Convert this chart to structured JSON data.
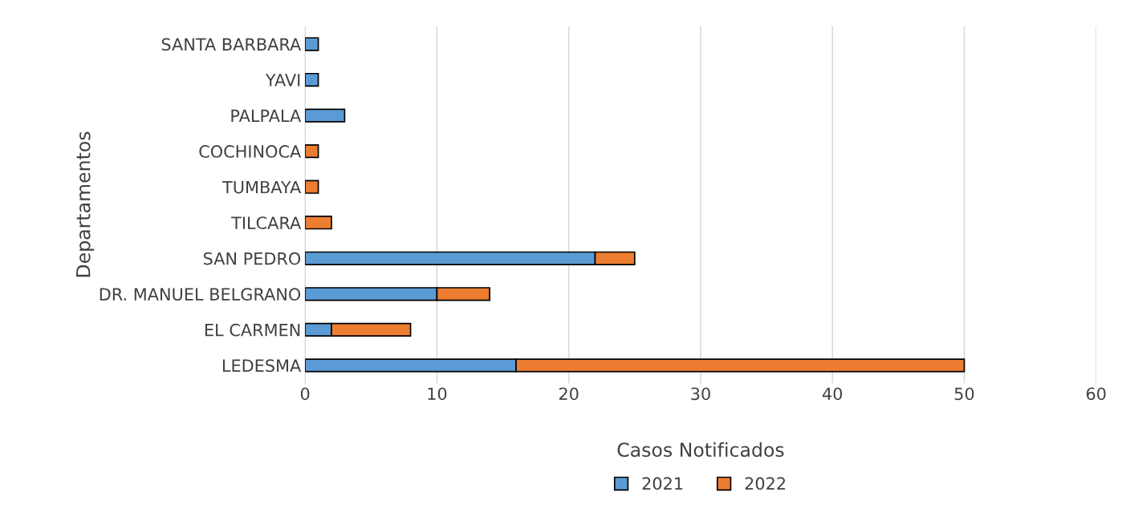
{
  "chart_data": {
    "type": "bar",
    "orientation": "horizontal",
    "stacked": true,
    "xlabel": "Casos Notificados",
    "ylabel": "Departamentos",
    "categories": [
      "SANTA BARBARA",
      "YAVI",
      "PALPALA",
      "COCHINOCA",
      "TUMBAYA",
      "TILCARA",
      "SAN PEDRO",
      "DR. MANUEL BELGRANO",
      "EL CARMEN",
      "LEDESMA"
    ],
    "series": [
      {
        "name": "2021",
        "color": "#5b9bd5",
        "values": [
          1,
          1,
          3,
          null,
          null,
          null,
          22,
          10,
          2,
          16
        ]
      },
      {
        "name": "2022",
        "color": "#ed7d31",
        "values": [
          null,
          null,
          null,
          1,
          1,
          2,
          3,
          4,
          6,
          34
        ]
      }
    ],
    "xlim": [
      0,
      60
    ],
    "xticks": [
      0,
      10,
      20,
      30,
      40,
      50,
      60
    ],
    "grid": "x",
    "legend": "bottom"
  }
}
